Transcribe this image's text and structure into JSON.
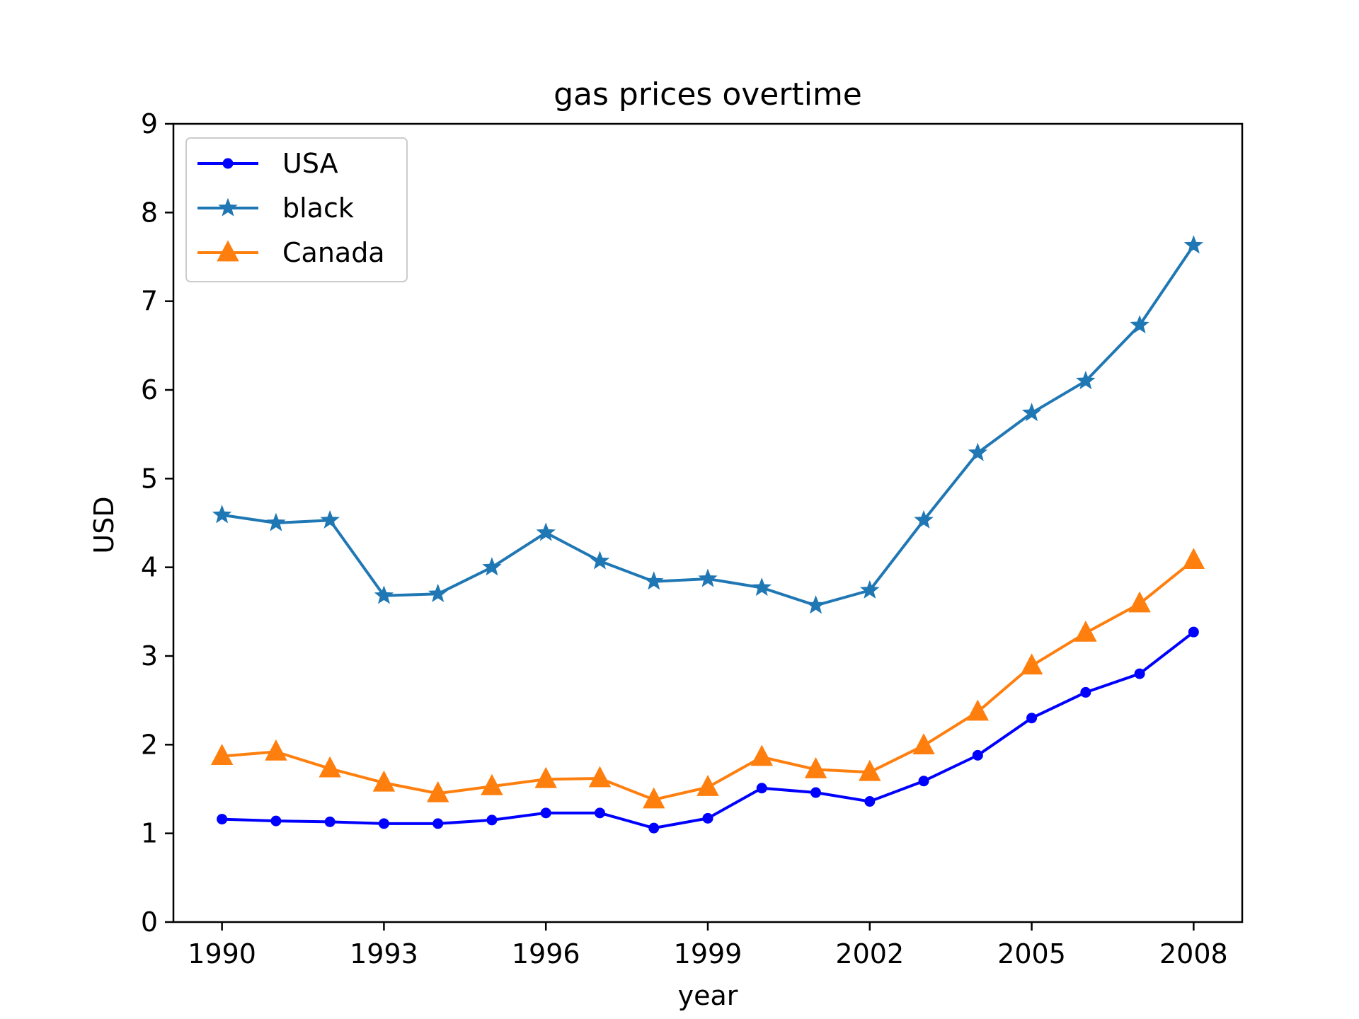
{
  "chart_data": {
    "type": "line",
    "title": "gas prices overtime",
    "xlabel": "year",
    "ylabel": "USD",
    "xlim": [
      1989.1,
      2008.9
    ],
    "ylim": [
      0,
      9
    ],
    "x_ticks": [
      1990,
      1993,
      1996,
      1999,
      2002,
      2005,
      2008
    ],
    "y_ticks": [
      0,
      1,
      2,
      3,
      4,
      5,
      6,
      7,
      8,
      9
    ],
    "grid": false,
    "legend_position": "upper-left",
    "x": [
      1990,
      1991,
      1992,
      1993,
      1994,
      1995,
      1996,
      1997,
      1998,
      1999,
      2000,
      2001,
      2002,
      2003,
      2004,
      2005,
      2006,
      2007,
      2008
    ],
    "series": [
      {
        "name": "USA",
        "color": "#0000ff",
        "marker": "circle",
        "values": [
          1.16,
          1.14,
          1.13,
          1.11,
          1.11,
          1.15,
          1.23,
          1.23,
          1.06,
          1.17,
          1.51,
          1.46,
          1.36,
          1.59,
          1.88,
          2.3,
          2.59,
          2.8,
          3.27
        ]
      },
      {
        "name": "black",
        "color": "#1f77b4",
        "marker": "star",
        "values": [
          4.59,
          4.5,
          4.53,
          3.68,
          3.7,
          4.0,
          4.39,
          4.07,
          3.84,
          3.87,
          3.77,
          3.57,
          3.74,
          4.53,
          5.29,
          5.74,
          6.1,
          6.73,
          7.63
        ]
      },
      {
        "name": "Canada",
        "color": "#ff7f0e",
        "marker": "triangle",
        "values": [
          1.87,
          1.92,
          1.73,
          1.57,
          1.45,
          1.53,
          1.61,
          1.62,
          1.38,
          1.52,
          1.86,
          1.72,
          1.69,
          1.99,
          2.37,
          2.89,
          3.26,
          3.59,
          4.08
        ]
      }
    ]
  }
}
